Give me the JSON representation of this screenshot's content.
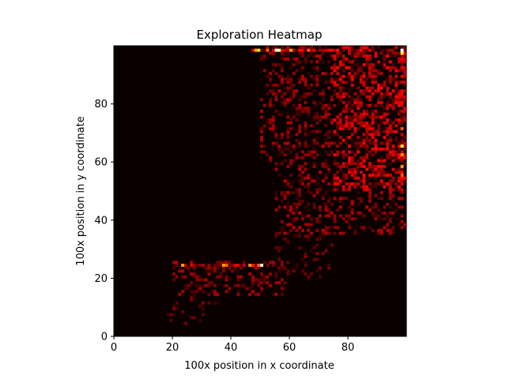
{
  "chart_data": {
    "type": "heatmap",
    "title": "Exploration Heatmap",
    "xlabel": "100x position in x coordinate",
    "ylabel": "100x position in y coordinate",
    "xlim": [
      0,
      100
    ],
    "ylim": [
      0,
      100
    ],
    "x_ticks": [
      "0",
      "20",
      "40",
      "60",
      "80"
    ],
    "y_ticks": [
      "0",
      "20",
      "40",
      "60",
      "80"
    ],
    "grid": false,
    "colormap": "hot",
    "background_color": "#0a0000",
    "grid_size": 100,
    "hot_cells": [
      {
        "x": 48,
        "y": 98,
        "v": 0.6
      },
      {
        "x": 49,
        "y": 98,
        "v": 0.7
      },
      {
        "x": 52,
        "y": 98,
        "v": 0.5
      },
      {
        "x": 55,
        "y": 98,
        "v": 1.0
      },
      {
        "x": 56,
        "y": 98,
        "v": 0.9
      },
      {
        "x": 60,
        "y": 98,
        "v": 0.6
      },
      {
        "x": 66,
        "y": 98,
        "v": 0.5
      },
      {
        "x": 98,
        "y": 98,
        "v": 1.0
      },
      {
        "x": 98,
        "y": 97,
        "v": 0.8
      },
      {
        "x": 98,
        "y": 65,
        "v": 0.8
      },
      {
        "x": 98,
        "y": 62,
        "v": 0.6
      },
      {
        "x": 98,
        "y": 58,
        "v": 0.6
      },
      {
        "x": 98,
        "y": 55,
        "v": 0.5
      },
      {
        "x": 98,
        "y": 71,
        "v": 0.5
      },
      {
        "x": 23,
        "y": 24,
        "v": 0.6
      },
      {
        "x": 37,
        "y": 24,
        "v": 0.6
      },
      {
        "x": 38,
        "y": 24,
        "v": 0.5
      },
      {
        "x": 46,
        "y": 24,
        "v": 0.6
      },
      {
        "x": 47,
        "y": 24,
        "v": 0.4
      },
      {
        "x": 50,
        "y": 24,
        "v": 1.0
      },
      {
        "x": 49,
        "y": 24,
        "v": 0.5
      }
    ]
  }
}
